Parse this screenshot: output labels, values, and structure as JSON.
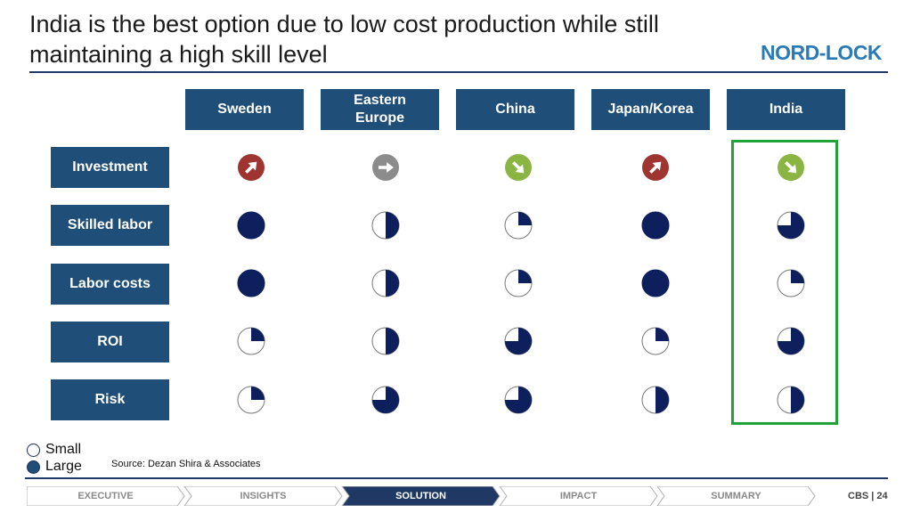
{
  "slide": {
    "title": "India is the best option due to low cost production while still maintaining a high skill level",
    "logo_text": "NORD-LOCK",
    "source": "Source: Dezan Shira & Associates",
    "page_number": "24",
    "brand_code": "CBS |"
  },
  "columns": [
    "Sweden",
    "Eastern Europe",
    "China",
    "Japan/Korea",
    "India"
  ],
  "rows": [
    "Investment",
    "Skilled labor",
    "Labor costs",
    "ROI",
    "Risk"
  ],
  "investment_icons": [
    {
      "icon": "arrow-up-right-icon",
      "color": "#9e3530"
    },
    {
      "icon": "arrow-right-icon",
      "color": "#8c8c8c"
    },
    {
      "icon": "arrow-down-right-icon",
      "color": "#8bb543"
    },
    {
      "icon": "arrow-up-right-icon",
      "color": "#9e3530"
    },
    {
      "icon": "arrow-down-right-icon",
      "color": "#8bb543"
    }
  ],
  "harvey_levels": [
    [
      1.0,
      0.5,
      0.25,
      1.0,
      0.75
    ],
    [
      1.0,
      0.5,
      0.25,
      1.0,
      0.25
    ],
    [
      0.25,
      0.5,
      0.75,
      0.25,
      0.75
    ],
    [
      0.25,
      0.75,
      0.75,
      0.5,
      0.5
    ]
  ],
  "highlighted_column": "India",
  "legend": {
    "small": "Small",
    "large": "Large"
  },
  "nav": {
    "steps": [
      "EXECUTIVE",
      "INSIGHTS",
      "SOLUTION",
      "IMPACT",
      "SUMMARY"
    ],
    "active": "SOLUTION"
  },
  "colors": {
    "header_blue": "#1f4e79",
    "ball_navy": "#0d1f5c",
    "highlight_green": "#22a33a",
    "logo_blue": "#2a7ab8"
  }
}
